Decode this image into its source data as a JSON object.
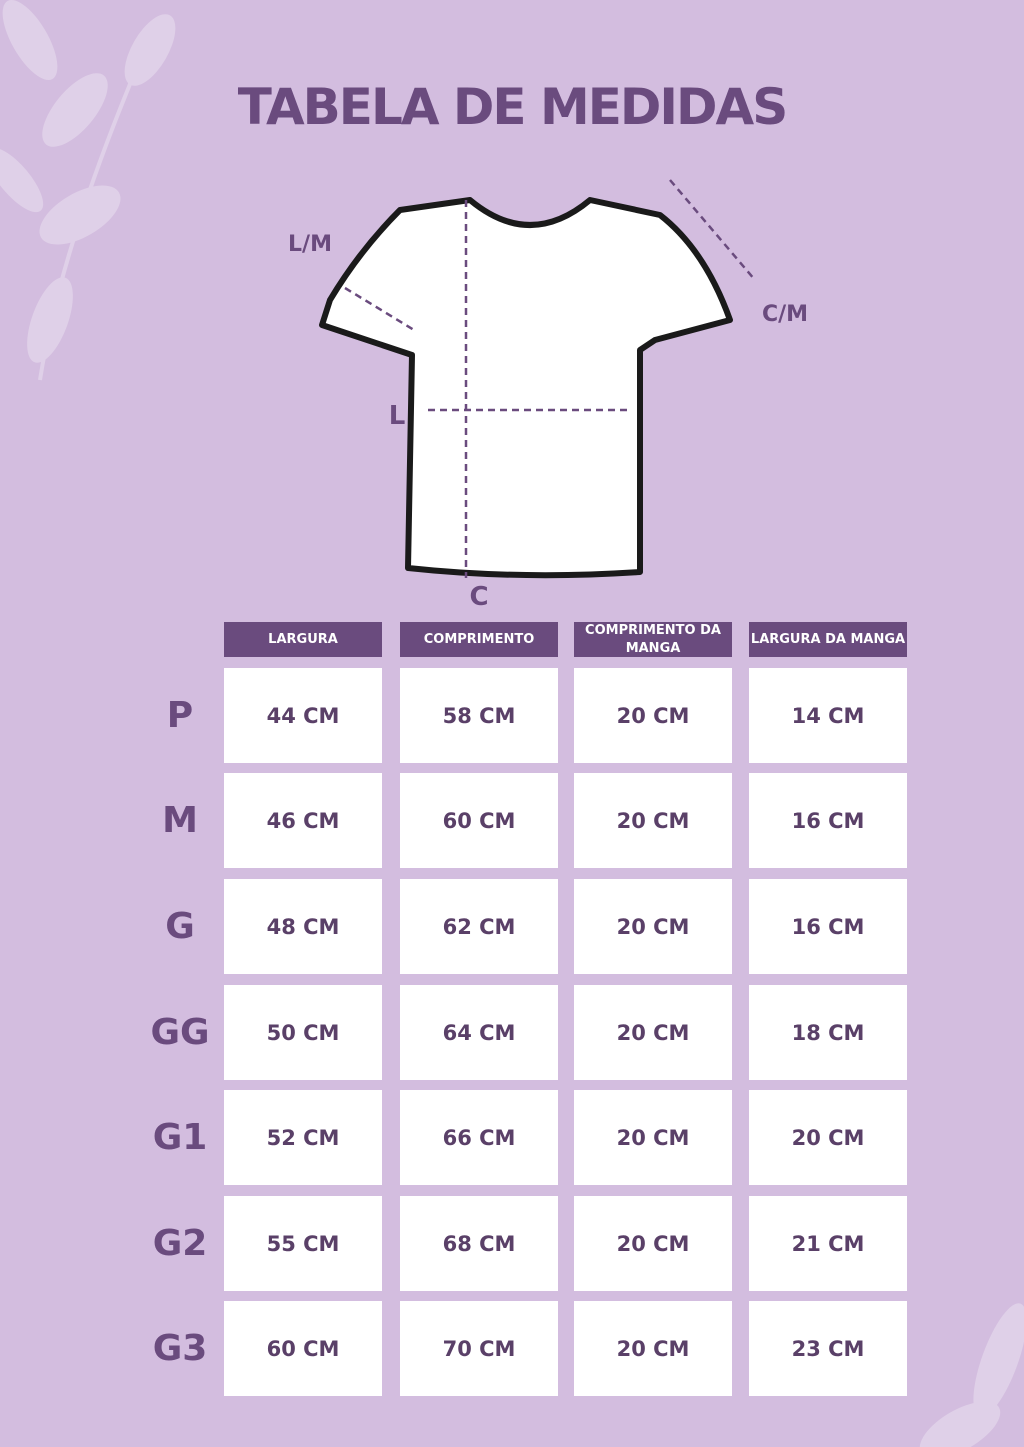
{
  "header": {
    "title": "TABELA DE MEDIDAS"
  },
  "diagram": {
    "labels": [
      "L/M",
      "C/M",
      "L",
      "C"
    ]
  },
  "table": {
    "columns": [
      "LARGURA",
      "COMPRIMENTO",
      "COMPRIMENTO DA MANGA",
      "LARGURA DA MANGA"
    ],
    "rows": [
      {
        "size": "P",
        "cells": [
          "44 CM",
          "58 CM",
          "20 CM",
          "14 CM"
        ]
      },
      {
        "size": "M",
        "cells": [
          "46 CM",
          "60 CM",
          "20 CM",
          "16 CM"
        ]
      },
      {
        "size": "G",
        "cells": [
          "48 CM",
          "62 CM",
          "20 CM",
          "16 CM"
        ]
      },
      {
        "size": "GG",
        "cells": [
          "50 CM",
          "64 CM",
          "20 CM",
          "18 CM"
        ]
      },
      {
        "size": "G1",
        "cells": [
          "52 CM",
          "66 CM",
          "20 CM",
          "20 CM"
        ]
      },
      {
        "size": "G2",
        "cells": [
          "55 CM",
          "68 CM",
          "20 CM",
          "21 CM"
        ]
      },
      {
        "size": "G3",
        "cells": [
          "60 CM",
          "70 CM",
          "20 CM",
          "23 CM"
        ]
      }
    ]
  }
}
